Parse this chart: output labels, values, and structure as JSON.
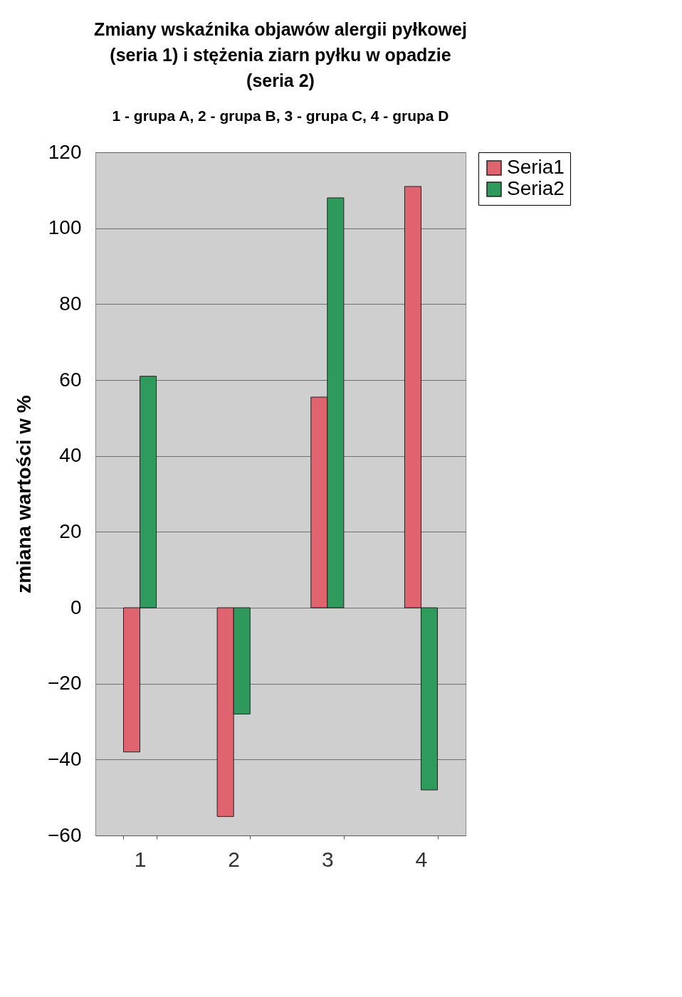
{
  "chart_data": {
    "type": "bar",
    "title": "Zmiany wskaźnika objawów alergii pyłkowej (seria 1) i stężenia ziarn pyłku w opadzie (seria 2)",
    "subtitle": "1 - grupa A, 2 - grupa B, 3 - grupa C, 4 - grupa D",
    "ylabel": "zmiana wartości w %",
    "categories": [
      "1",
      "2",
      "3",
      "4"
    ],
    "series": [
      {
        "name": "Seria1",
        "color": "#e06470",
        "values": [
          -38,
          -55,
          55.5,
          111
        ]
      },
      {
        "name": "Seria2",
        "color": "#2e9a5c",
        "values": [
          61,
          -28,
          108,
          -48
        ]
      }
    ],
    "ylim": [
      -60,
      120
    ],
    "yticks": [
      -60,
      -40,
      -20,
      0,
      20,
      40,
      60,
      80,
      100,
      120
    ],
    "grid": "y",
    "legend": "right"
  }
}
